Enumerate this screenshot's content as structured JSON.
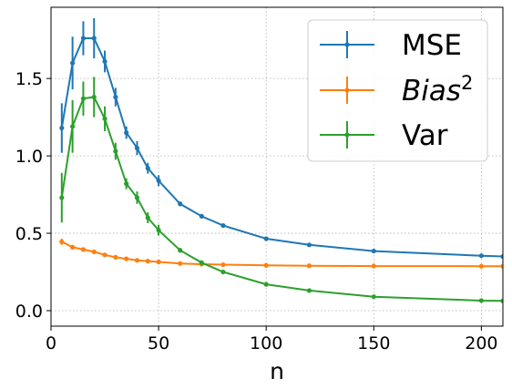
{
  "chart_data": {
    "type": "line",
    "title": "",
    "xlabel": "n",
    "ylabel": "",
    "xlim": [
      0,
      210
    ],
    "ylim": [
      -0.1,
      1.96
    ],
    "xticks": [
      0,
      50,
      100,
      150,
      200
    ],
    "yticks": [
      0.0,
      0.5,
      1.0,
      1.5
    ],
    "xtick_labels": [
      "0",
      "50",
      "100",
      "150",
      "200"
    ],
    "ytick_labels": [
      "0.0",
      "0.5",
      "1.0",
      "1.5"
    ],
    "grid": true,
    "legend_position": "top-right",
    "x": [
      5,
      10,
      15,
      20,
      25,
      30,
      35,
      40,
      45,
      50,
      60,
      70,
      80,
      100,
      120,
      150,
      200,
      210
    ],
    "series": [
      {
        "name": "MSE",
        "color": "#1f77b4",
        "values": [
          1.18,
          1.6,
          1.76,
          1.76,
          1.61,
          1.38,
          1.15,
          1.05,
          0.92,
          0.84,
          0.69,
          0.61,
          0.55,
          0.465,
          0.425,
          0.385,
          0.355,
          0.35
        ],
        "errors": [
          0.16,
          0.17,
          0.11,
          0.13,
          0.07,
          0.06,
          0.04,
          0.045,
          0.035,
          0.035,
          0.015,
          0.01,
          0.01,
          0.005,
          0.005,
          0.005,
          0.005,
          0
        ]
      },
      {
        "name": "Bias",
        "name_superscript": "2",
        "color": "#ff7f0e",
        "values": [
          0.445,
          0.41,
          0.395,
          0.38,
          0.36,
          0.345,
          0.335,
          0.325,
          0.32,
          0.315,
          0.305,
          0.3,
          0.297,
          0.293,
          0.29,
          0.288,
          0.287,
          0.287
        ],
        "errors": [
          0.02,
          0.015,
          0.012,
          0.012,
          0.01,
          0.01,
          0.008,
          0.006,
          0.005,
          0.005,
          0.004,
          0.003,
          0.003,
          0.002,
          0.002,
          0.002,
          0.002,
          0
        ]
      },
      {
        "name": "Var",
        "color": "#2ca02c",
        "values": [
          0.73,
          1.19,
          1.37,
          1.38,
          1.24,
          1.03,
          0.82,
          0.73,
          0.6,
          0.52,
          0.39,
          0.31,
          0.25,
          0.17,
          0.13,
          0.09,
          0.065,
          0.063
        ],
        "errors": [
          0.16,
          0.17,
          0.11,
          0.13,
          0.08,
          0.055,
          0.035,
          0.04,
          0.035,
          0.035,
          0.015,
          0.015,
          0.01,
          0.005,
          0.005,
          0.005,
          0.005,
          0
        ]
      }
    ]
  }
}
